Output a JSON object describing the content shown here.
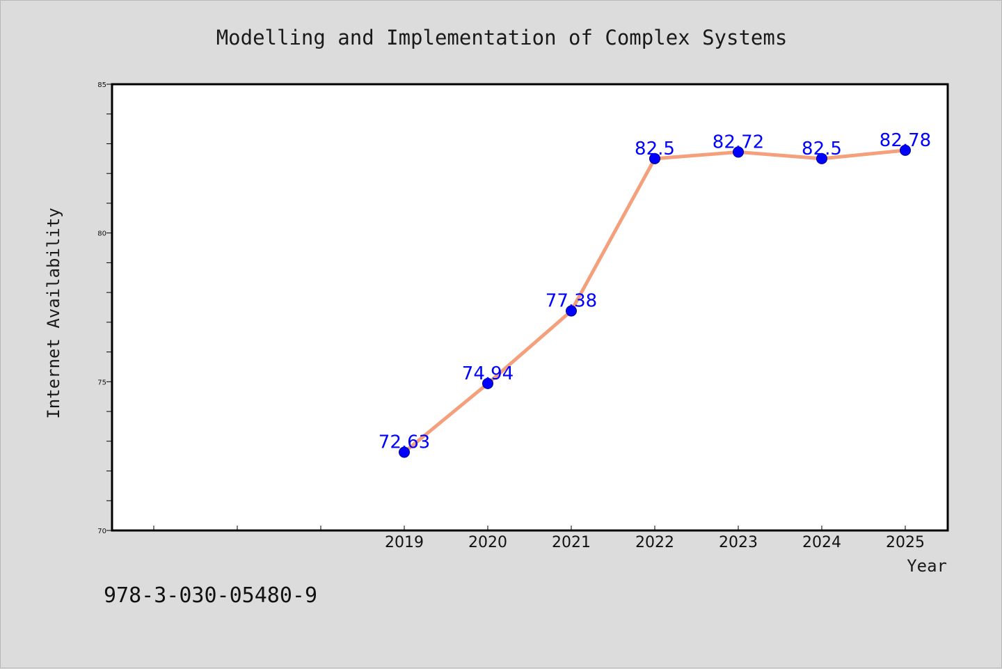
{
  "chart_data": {
    "type": "line",
    "title": "Modelling and Implementation of Complex Systems",
    "xlabel": "Year",
    "ylabel": "Internet Availability",
    "categories": [
      "2019",
      "2020",
      "2021",
      "2022",
      "2023",
      "2024",
      "2025"
    ],
    "values": [
      72.63,
      74.94,
      77.38,
      82.5,
      82.72,
      82.5,
      82.78
    ],
    "data_labels": [
      "72.63",
      "74.94",
      "77.38",
      "82.5",
      "82.72",
      "82.5",
      "82.78"
    ],
    "ylim": [
      70,
      85
    ],
    "y_ticks": [
      70,
      75,
      80,
      85
    ],
    "y_tick_labels": [
      "70",
      "75",
      "80",
      "85"
    ],
    "grid": false,
    "legend": "none",
    "line_color": "#f4a07c",
    "marker_color": "#0000ff",
    "label_color": "#0000ff",
    "plot_background": "#ffffff",
    "page_background": "#dcdcdc"
  },
  "footer": {
    "isbn": "978-3-030-05480-9"
  }
}
